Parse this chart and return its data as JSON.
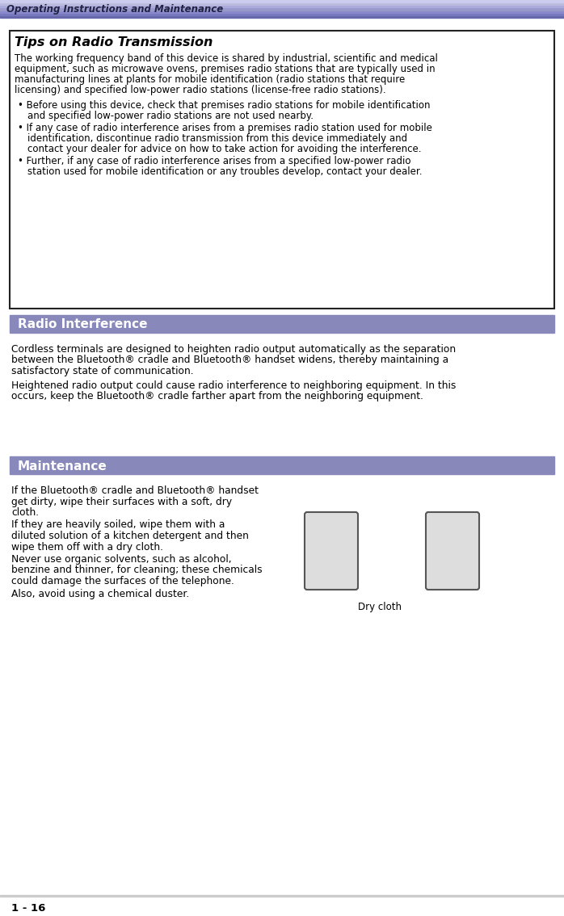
{
  "header_text": "Operating Instructions and Maintenance",
  "header_bg": "#c8cce8",
  "header_stripe_colors": [
    "#9999bb",
    "#aaaacc",
    "#bbbbdd",
    "#c8cce8"
  ],
  "page_number": "1 - 16",
  "tips_title": "Tips on Radio Transmission",
  "tips_body": "The working frequency band of this device is shared by industrial, scientific and medical equipment, such as microwave ovens, premises radio stations that are typically used in manufacturing lines at plants for mobile identification (radio stations that require licensing) and specified low-power radio stations (license-free radio stations).",
  "tips_bullets": [
    "Before using this device, check that premises radio stations for mobile identification and specified low-power radio stations are not used nearby.",
    "If any case of radio interference arises from a premises radio station used for mobile identification, discontinue radio transmission from this device immediately and contact your dealer for advice on how to take action for avoiding the interference.",
    "Further, if any case of radio interference arises from a specified low-power radio station used for mobile identification or any troubles develop, contact your dealer."
  ],
  "radio_section_title": "Radio Interference",
  "radio_section_bg": "#8888bb",
  "radio_body1": "Cordless terminals are designed to heighten radio output automatically as the separation between the Bluetooth® cradle and Bluetooth® handset widens, thereby maintaining a satisfactory state of communication.",
  "radio_body2": "Heightened radio output could cause radio interference to neighboring equipment. In this occurs, keep the Bluetooth® cradle farther apart from the neighboring equipment.",
  "maintenance_section_title": "Maintenance",
  "maintenance_section_bg": "#8888bb",
  "maintenance_body": "If the Bluetooth® cradle and Bluetooth® handset get dirty, wipe their surfaces with a soft, dry cloth.\nIf they are heavily soiled, wipe them with a diluted solution of a kitchen detergent and then wipe them off with a dry cloth.\nNever use organic solvents, such as alcohol, benzine and thinner, for cleaning; these chemicals could damage the surfaces of the telephone.\nAlso, avoid using a chemical duster.",
  "dry_cloth_label": "Dry cloth",
  "bg_color": "#ffffff",
  "text_color": "#000000",
  "body_fontsize": 9.5,
  "title_fontsize": 11,
  "section_title_fontsize": 12
}
